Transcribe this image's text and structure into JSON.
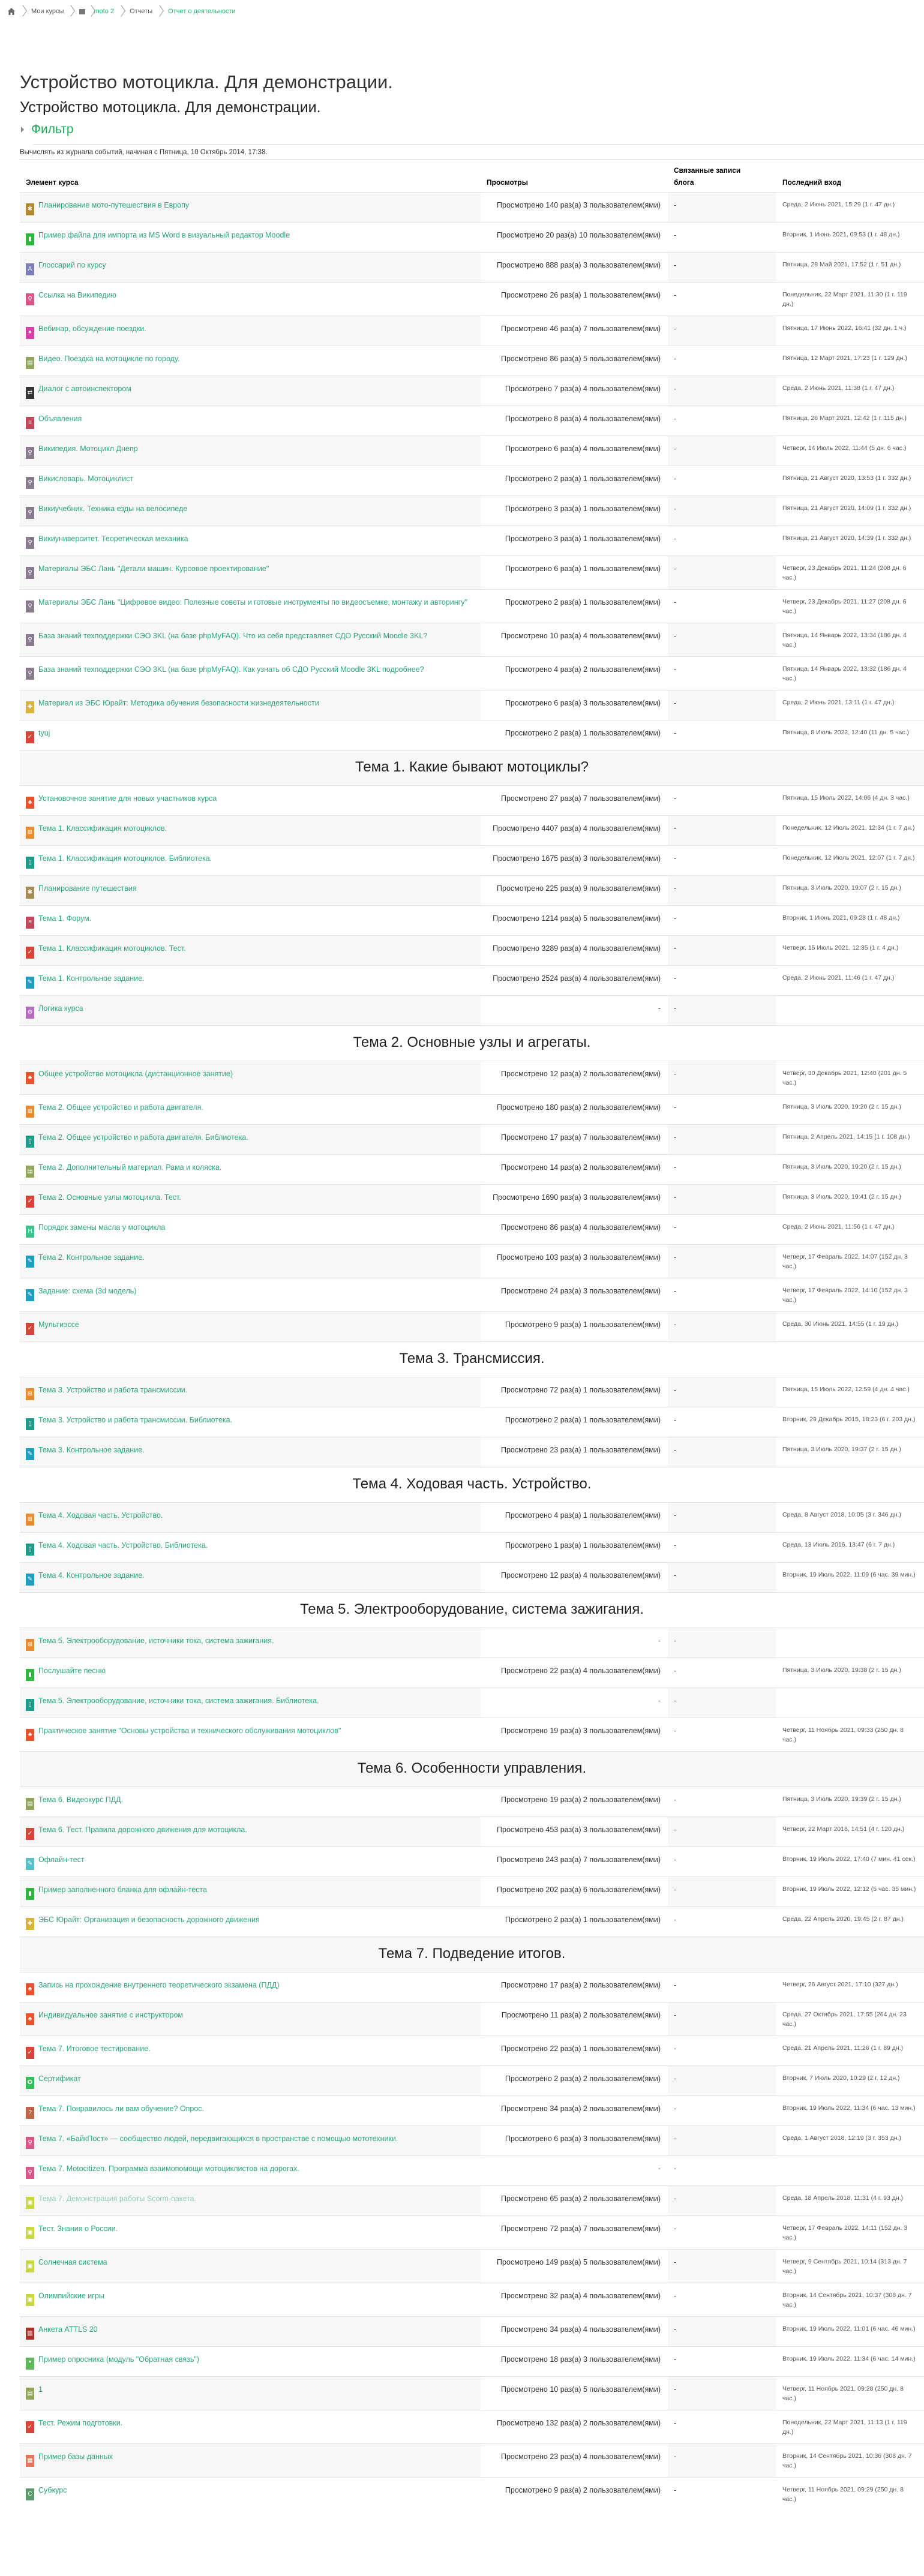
{
  "breadcrumb": {
    "home_icon": "home-icon",
    "items": [
      {
        "label": "Мои курсы",
        "link": false
      },
      {
        "label": "moto 2",
        "link": true,
        "icon": "course-icon"
      },
      {
        "label": "Отчеты",
        "link": false
      },
      {
        "label": "Отчет о деятельности",
        "link": true
      }
    ]
  },
  "page_title": "Устройство мотоцикла. Для демонстрации.",
  "page_subtitle": "Устройство мотоцикла. Для демонстрации.",
  "filter_label": "Фильтр",
  "note": "Вычислять из журнала событий, начиная с Пятница, 10 Октябрь 2014, 17:38.",
  "colors": {
    "link": "#2aa77a",
    "breadcrumb_link": "#1eb36c",
    "stripe": "#f7f7f7"
  },
  "table": {
    "headers": {
      "activity": "Элемент курса",
      "views": "Просмотры",
      "blog": "Связанные записи блога",
      "last": "Последний вход"
    },
    "rows": [
      {
        "name": "Планирование мото-путешествия в Европу",
        "views": "Просмотрено 140 раз(а) 3 пользователем(ями)",
        "blog": "-",
        "last": "Среда, 2 Июнь 2021, 15:29 (1 г. 47 дн.)",
        "icon": "workshop-icon",
        "color": "#b08a2e"
      },
      {
        "name": "Пример файла для импорта из MS Word в визуальный редактор Moodle",
        "views": "Просмотрено 20 раз(а) 10 пользователем(ями)",
        "blog": "-",
        "last": "Вторник, 1 Июнь 2021, 09:53 (1 г. 48 дн.)",
        "icon": "file-icon",
        "color": "#2db83d"
      },
      {
        "name": "Глоссарий по курсу",
        "views": "Просмотрено 888 раз(а) 3 пользователем(ями)",
        "blog": "-",
        "last": "Пятница, 28 Май 2021, 17:52 (1 г. 51 дн.)",
        "icon": "glossary-icon",
        "color": "#7b7fb5"
      },
      {
        "name": "Ссылка на Википедию",
        "views": "Просмотрено 26 раз(а) 1 пользователем(ями)",
        "blog": "-",
        "last": "Понедельник, 22 Март 2021, 11:30 (1 г. 119 дн.)",
        "icon": "url-icon",
        "color": "#d9558a"
      },
      {
        "name": "Вебинар, обсуждение поездки.",
        "views": "Просмотрено 46 раз(а) 7 пользователем(ями)",
        "blog": "-",
        "last": "Пятница, 17 Июнь 2022, 16:41 (32 дн. 1 ч.)",
        "icon": "webinar-icon",
        "color": "#d63fa6"
      },
      {
        "name": "Видео. Поездка на мотоцикле по городу.",
        "views": "Просмотрено 86 раз(а) 5 пользователем(ями)",
        "blog": "-",
        "last": "Пятница, 12 Март 2021, 17:23 (1 г. 129 дн.)",
        "icon": "page-icon",
        "color": "#8fa55a"
      },
      {
        "name": "Диалог с автоинспектором",
        "views": "Просмотрено 7 раз(а) 4 пользователем(ями)",
        "blog": "-",
        "last": "Среда, 2 Июнь 2021, 11:38 (1 г. 47 дн.)",
        "icon": "dialogue-icon",
        "color": "#333333"
      },
      {
        "name": "Объявления",
        "views": "Просмотрено 8 раз(а) 4 пользователем(ями)",
        "blog": "-",
        "last": "Пятница, 26 Март 2021, 12:42 (1 г. 115 дн.)",
        "icon": "forum-icon",
        "color": "#c4465a"
      },
      {
        "name": "Википедия. Мотоцикл Днепр",
        "views": "Просмотрено 6 раз(а) 4 пользователем(ями)",
        "blog": "-",
        "last": "Четверг, 14 Июль 2022, 11:44 (5 дн. 6 час.)",
        "icon": "lti-icon",
        "color": "#8a7a8f"
      },
      {
        "name": "Викисловарь. Мотоциклист",
        "views": "Просмотрено 2 раз(а) 1 пользователем(ями)",
        "blog": "-",
        "last": "Пятница, 21 Август 2020, 13:53 (1 г. 332 дн.)",
        "icon": "lti-icon",
        "color": "#8a7a8f"
      },
      {
        "name": "Викиучебник. Техника езды на велосипеде",
        "views": "Просмотрено 3 раз(а) 1 пользователем(ями)",
        "blog": "-",
        "last": "Пятница, 21 Август 2020, 14:09 (1 г. 332 дн.)",
        "icon": "lti-icon",
        "color": "#8a7a8f"
      },
      {
        "name": "Викиуниверситет. Теоретическая механика",
        "views": "Просмотрено 3 раз(а) 1 пользователем(ями)",
        "blog": "-",
        "last": "Пятница, 21 Август 2020, 14:39 (1 г. 332 дн.)",
        "icon": "lti-icon",
        "color": "#8a7a8f"
      },
      {
        "name": "Материалы ЭБС Лань \"Детали машин. Курсовое проектирование\"",
        "views": "Просмотрено 6 раз(а) 1 пользователем(ями)",
        "blog": "-",
        "last": "Четверг, 23 Декабрь 2021, 11:24 (208 дн. 6 час.)",
        "icon": "lti-icon",
        "color": "#8a7a8f"
      },
      {
        "name": "Материалы ЭБС Лань \"Цифровое видео: Полезные советы и готовые инструменты по видеосъемке, монтажу и авторингу\"",
        "views": "Просмотрено 2 раз(а) 1 пользователем(ями)",
        "blog": "-",
        "last": "Четверг, 23 Декабрь 2021, 11:27 (208 дн. 6 час.)",
        "icon": "lti-icon",
        "color": "#8a7a8f"
      },
      {
        "name": "База знаний техподдержки СЭО 3KL (на базе phpMyFAQ). Что из себя представляет СДО Русский Moodle 3KL?",
        "views": "Просмотрено 10 раз(а) 4 пользователем(ями)",
        "blog": "-",
        "last": "Пятница, 14 Январь 2022, 13:34 (186 дн. 4 час.)",
        "icon": "lti-icon",
        "color": "#8a7a8f"
      },
      {
        "name": "База знаний техподдержки СЭО 3KL (на базе phpMyFAQ). Как узнать об СДО Русский Moodle 3KL подробнее?",
        "views": "Просмотрено 4 раз(а) 2 пользователем(ями)",
        "blog": "-",
        "last": "Пятница, 14 Январь 2022, 13:32 (186 дн. 4 час.)",
        "icon": "lti-icon",
        "color": "#8a7a8f"
      },
      {
        "name": "Материал из ЭБС Юрайт: Методика обучения безопасности жизнедеятельности",
        "views": "Просмотрено 6 раз(а) 3 пользователем(ями)",
        "blog": "-",
        "last": "Среда, 2 Июнь 2021, 13:11 (1 г. 47 дн.)",
        "icon": "puzzle-icon",
        "color": "#d9b33a"
      },
      {
        "name": "tyuj",
        "views": "Просмотрено 2 раз(а) 1 пользователем(ями)",
        "blog": "-",
        "last": "Пятница, 8 Июль 2022, 12:40 (11 дн. 5 час.)",
        "icon": "quiz-icon",
        "color": "#d9443a"
      },
      {
        "section": "Тема 1. Какие бывают мотоциклы?"
      },
      {
        "name": "Установочное занятие для новых участников курса",
        "views": "Просмотрено 27 раз(а) 7 пользователем(ями)",
        "blog": "-",
        "last": "Пятница, 15 Июль 2022, 14:06 (4 дн. 3 час.)",
        "icon": "event-icon",
        "color": "#e8532b"
      },
      {
        "name": "Тема 1. Классификация мотоциклов.",
        "views": "Просмотрено 4407 раз(а) 4 пользователем(ями)",
        "blog": "-",
        "last": "Понедельник, 12 Июль 2021, 12:34 (1 г. 7 дн.)",
        "icon": "lesson-icon",
        "color": "#e98a2e"
      },
      {
        "name": "Тема 1. Классификация мотоциклов. Библиотека.",
        "views": "Просмотрено 1675 раз(а) 3 пользователем(ями)",
        "blog": "-",
        "last": "Понедельник, 12 Июль 2021, 12:07 (1 г. 7 дн.)",
        "icon": "book-icon",
        "color": "#1a9e8a"
      },
      {
        "name": "Планирование путешествия",
        "views": "Просмотрено 225 раз(а) 9 пользователем(ями)",
        "blog": "-",
        "last": "Пятница, 3 Июль 2020, 19:07 (2 г. 15 дн.)",
        "icon": "workshop-icon",
        "color": "#a88a55"
      },
      {
        "name": "Тема 1. Форум.",
        "views": "Просмотрено 1214 раз(а) 5 пользователем(ями)",
        "blog": "-",
        "last": "Вторник, 1 Июнь 2021, 09:28 (1 г. 48 дн.)",
        "icon": "forum-icon",
        "color": "#c4465a"
      },
      {
        "name": "Тема 1. Классификация мотоциклов. Тест.",
        "views": "Просмотрено 3289 раз(а) 4 пользователем(ями)",
        "blog": "-",
        "last": "Четверг, 15 Июль 2021, 12:35 (1 г. 4 дн.)",
        "icon": "quiz-icon",
        "color": "#d9443a"
      },
      {
        "name": "Тема 1. Контрольное задание.",
        "views": "Просмотрено 2524 раз(а) 4 пользователем(ями)",
        "blog": "-",
        "last": "Среда, 2 Июнь 2021, 11:46 (1 г. 47 дн.)",
        "icon": "assign-icon",
        "color": "#1e9fc0"
      },
      {
        "name": "Логика курса",
        "views": "-",
        "blog": "-",
        "last": "",
        "icon": "gear-icon",
        "color": "#b36abf"
      },
      {
        "section": "Тема 2. Основные узлы и агрегаты."
      },
      {
        "name": "Общее устройство мотоцикла (дистанционное занятие)",
        "views": "Просмотрено 12 раз(а) 2 пользователем(ями)",
        "blog": "-",
        "last": "Четверг, 30 Декабрь 2021, 12:40 (201 дн. 5 час.)",
        "icon": "event-icon",
        "color": "#e8532b"
      },
      {
        "name": "Тема 2. Общее устройство и работа двигателя.",
        "views": "Просмотрено 180 раз(а) 2 пользователем(ями)",
        "blog": "-",
        "last": "Пятница, 3 Июль 2020, 19:20 (2 г. 15 дн.)",
        "icon": "lesson-icon",
        "color": "#e98a2e"
      },
      {
        "name": "Тема 2. Общее устройство и работа двигателя. Библиотека.",
        "views": "Просмотрено 17 раз(а) 7 пользователем(ями)",
        "blog": "-",
        "last": "Пятница, 2 Апрель 2021, 14:15 (1 г. 108 дн.)",
        "icon": "book-icon",
        "color": "#1a9e8a"
      },
      {
        "name": "Тема 2. Дополнительный материал. Рама и коляска.",
        "views": "Просмотрено 14 раз(а) 2 пользователем(ями)",
        "blog": "-",
        "last": "Пятница, 3 Июль 2020, 19:20 (2 г. 15 дн.)",
        "icon": "page-icon",
        "color": "#8fa55a"
      },
      {
        "name": "Тема 2. Основные узлы мотоцикла. Тест.",
        "views": "Просмотрено 1690 раз(а) 3 пользователем(ями)",
        "blog": "-",
        "last": "Пятница, 3 Июль 2020, 19:41 (2 г. 15 дн.)",
        "icon": "quiz-icon",
        "color": "#d9443a"
      },
      {
        "name": "Порядок замены масла у мотоцикла",
        "views": "Просмотрено 86 раз(а) 4 пользователем(ями)",
        "blog": "-",
        "last": "Среда, 2 Июнь 2021, 11:56 (1 г. 47 дн.)",
        "icon": "hvp-icon",
        "color": "#3bc48a"
      },
      {
        "name": "Тема 2. Контрольное задание.",
        "views": "Просмотрено 103 раз(а) 3 пользователем(ями)",
        "blog": "-",
        "last": "Четверг, 17 Февраль 2022, 14:07 (152 дн. 3 час.)",
        "icon": "assign-icon",
        "color": "#1e9fc0"
      },
      {
        "name": "Задание: схема (3d модель)",
        "views": "Просмотрено 24 раз(а) 3 пользователем(ями)",
        "blog": "-",
        "last": "Четверг, 17 Февраль 2022, 14:10 (152 дн. 3 час.)",
        "icon": "assign-icon",
        "color": "#1e9fc0"
      },
      {
        "name": "Мультиэссе",
        "views": "Просмотрено 9 раз(а) 1 пользователем(ями)",
        "blog": "-",
        "last": "Среда, 30 Июнь 2021, 14:55 (1 г. 19 дн.)",
        "icon": "quiz-icon",
        "color": "#d9443a"
      },
      {
        "section": "Тема 3. Трансмиссия."
      },
      {
        "name": "Тема 3. Устройство и работа трансмиссии.",
        "views": "Просмотрено 72 раз(а) 1 пользователем(ями)",
        "blog": "-",
        "last": "Пятница, 15 Июль 2022, 12:59 (4 дн. 4 час.)",
        "icon": "lesson-icon",
        "color": "#e98a2e"
      },
      {
        "name": "Тема 3. Устройство и работа трансмиссии. Библиотека.",
        "views": "Просмотрено 2 раз(а) 1 пользователем(ями)",
        "blog": "-",
        "last": "Вторник, 29 Декабрь 2015, 18:23 (6 г. 203 дн.)",
        "icon": "book-icon",
        "color": "#1a9e8a"
      },
      {
        "name": "Тема 3. Контрольное задание.",
        "views": "Просмотрено 23 раз(а) 1 пользователем(ями)",
        "blog": "-",
        "last": "Пятница, 3 Июль 2020, 19:37 (2 г. 15 дн.)",
        "icon": "assign-icon",
        "color": "#1e9fc0"
      },
      {
        "section": "Тема 4. Ходовая часть. Устройство."
      },
      {
        "name": "Тема 4. Ходовая часть. Устройство.",
        "views": "Просмотрено 4 раз(а) 1 пользователем(ями)",
        "blog": "-",
        "last": "Среда, 8 Август 2018, 10:05 (3 г. 346 дн.)",
        "icon": "lesson-icon",
        "color": "#e98a2e"
      },
      {
        "name": "Тема 4. Ходовая часть. Устройство. Библиотека.",
        "views": "Просмотрено 1 раз(а) 1 пользователем(ями)",
        "blog": "-",
        "last": "Среда, 13 Июль 2016, 13:47 (6 г. 7 дн.)",
        "icon": "book-icon",
        "color": "#1a9e8a"
      },
      {
        "name": "Тема 4. Контрольное задание.",
        "views": "Просмотрено 12 раз(а) 4 пользователем(ями)",
        "blog": "-",
        "last": "Вторник, 19 Июль 2022, 11:09 (6 час. 39 мин.)",
        "icon": "assign-icon",
        "color": "#1e9fc0"
      },
      {
        "section": "Тема 5. Электрооборудование, система зажигания."
      },
      {
        "name": "Тема 5. Электрооборудование, источники тока, система зажигания.",
        "views": "-",
        "blog": "-",
        "last": "",
        "icon": "lesson-icon",
        "color": "#e98a2e"
      },
      {
        "name": "Послушайте песню",
        "views": "Просмотрено 22 раз(а) 4 пользователем(ями)",
        "blog": "-",
        "last": "Пятница, 3 Июль 2020, 19:38 (2 г. 15 дн.)",
        "icon": "file-icon",
        "color": "#2db83d"
      },
      {
        "name": "Тема 5. Электрооборудование, источники тока, система зажигания. Библиотека.",
        "views": "-",
        "blog": "-",
        "last": "",
        "icon": "book-icon",
        "color": "#1a9e8a"
      },
      {
        "name": "Практическое занятие \"Основы устройства и технического обслуживания мотоциклов\"",
        "views": "Просмотрено 19 раз(а) 3 пользователем(ями)",
        "blog": "-",
        "last": "Четверг, 11 Ноябрь 2021, 09:33 (250 дн. 8 час.)",
        "icon": "event-icon",
        "color": "#e8532b"
      },
      {
        "section": "Тема 6. Особенности управления."
      },
      {
        "name": "Тема 6. Видеокурс ПДД.",
        "views": "Просмотрено 19 раз(а) 2 пользователем(ями)",
        "blog": "-",
        "last": "Пятница, 3 Июль 2020, 19:39 (2 г. 15 дн.)",
        "icon": "page-icon",
        "color": "#8fa55a"
      },
      {
        "name": "Тема 6. Тест. Правила дорожного движения для мотоцикла.",
        "views": "Просмотрено 453 раз(а) 3 пользователем(ями)",
        "blog": "-",
        "last": "Четверг, 22 Март 2018, 14:51 (4 г. 120 дн.)",
        "icon": "quiz-icon",
        "color": "#d9443a"
      },
      {
        "name": "Офлайн-тест",
        "views": "Просмотрено 243 раз(а) 7 пользователем(ями)",
        "blog": "-",
        "last": "Вторник, 19 Июль 2022, 17:40 (7 мин. 41 сек.)",
        "icon": "offline-quiz-icon",
        "color": "#5bbfc9"
      },
      {
        "name": "Пример заполненного бланка для офлайн-теста",
        "views": "Просмотрено 202 раз(а) 6 пользователем(ями)",
        "blog": "-",
        "last": "Вторник, 19 Июль 2022, 12:12 (5 час. 35 мин.)",
        "icon": "file-icon",
        "color": "#2db83d"
      },
      {
        "name": "ЭБС Юрайт: Организация и безопасность дорожного движения",
        "views": "Просмотрено 2 раз(а) 1 пользователем(ями)",
        "blog": "-",
        "last": "Среда, 22 Апрель 2020, 19:45 (2 г. 87 дн.)",
        "icon": "puzzle-icon",
        "color": "#d9b33a"
      },
      {
        "section": "Тема 7. Подведение итогов."
      },
      {
        "name": "Запись на прохождение внутреннего теоретического экзамена (ПДД)",
        "views": "Просмотрено 17 раз(а) 2 пользователем(ями)",
        "blog": "-",
        "last": "Четверг, 26 Август 2021, 17:10 (327 дн.)",
        "icon": "event-icon",
        "color": "#e8532b"
      },
      {
        "name": "Индивидуальное занятие с инструктором",
        "views": "Просмотрено 11 раз(а) 2 пользователем(ями)",
        "blog": "-",
        "last": "Среда, 27 Октябрь 2021, 17:55 (264 дн. 23 час.)",
        "icon": "event-icon",
        "color": "#e8532b"
      },
      {
        "name": "Тема 7. Итоговое тестирование.",
        "views": "Просмотрено 22 раз(а) 1 пользователем(ями)",
        "blog": "-",
        "last": "Среда, 21 Апрель 2021, 11:26 (1 г. 89 дн.)",
        "icon": "quiz-icon",
        "color": "#d9443a"
      },
      {
        "name": "Сертификат",
        "views": "Просмотрено 2 раз(а) 2 пользователем(ями)",
        "blog": "-",
        "last": "Вторник, 7 Июль 2020, 10:29 (2 г. 12 дн.)",
        "icon": "certificate-icon",
        "color": "#2fc05a"
      },
      {
        "name": "Тема 7. Понравилось ли вам обучение? Опрос.",
        "views": "Просмотрено 34 раз(а) 2 пользователем(ями)",
        "blog": "-",
        "last": "Вторник, 19 Июль 2022, 11:34 (6 час. 13 мин.)",
        "icon": "choice-icon",
        "color": "#c0654a"
      },
      {
        "name": "Тема 7. «БайкПост» — сообщество людей, передвигающихся в пространстве с помощью мототехники.",
        "views": "Просмотрено 6 раз(а) 3 пользователем(ями)",
        "blog": "-",
        "last": "Среда, 1 Август 2018, 12:19 (3 г. 353 дн.)",
        "icon": "url-icon",
        "color": "#d9558a"
      },
      {
        "name": "Тема 7. Motocitizen. Программа взаимопомощи мотоциклистов на дорогах.",
        "views": "-",
        "blog": "-",
        "last": "",
        "icon": "url-icon",
        "color": "#d9558a"
      },
      {
        "name": "Тема 7. Демонстрация работы Scorm-пакета.",
        "views": "Просмотрено 65 раз(а) 2 пользователем(ями)",
        "blog": "-",
        "last": "Среда, 18 Апрель 2018, 11:31 (4 г. 93 дн.)",
        "icon": "scorm-icon",
        "color": "#c9d83a",
        "dimmed": true
      },
      {
        "name": "Тест. Знания о России.",
        "views": "Просмотрено 72 раз(а) 7 пользователем(ями)",
        "blog": "-",
        "last": "Четверг, 17 Февраль 2022, 14:11 (152 дн. 3 час.)",
        "icon": "scorm-icon",
        "color": "#c9d83a"
      },
      {
        "name": "Солнечная система",
        "views": "Просмотрено 149 раз(а) 5 пользователем(ями)",
        "blog": "-",
        "last": "Четверг, 9 Сентябрь 2021, 10:14 (313 дн. 7 час.)",
        "icon": "scorm-icon",
        "color": "#c9d83a"
      },
      {
        "name": "Олимпийские игры",
        "views": "Просмотрено 32 раз(а) 4 пользователем(ями)",
        "blog": "-",
        "last": "Вторник, 14 Сентябрь 2021, 10:37 (308 дн. 7 час.)",
        "icon": "scorm-icon",
        "color": "#c9d83a"
      },
      {
        "name": "Анкета ATTLS 20",
        "views": "Просмотрено 34 раз(а) 4 пользователем(ями)",
        "blog": "-",
        "last": "Вторник, 19 Июль 2022, 11:01 (6 час. 46 мин.)",
        "icon": "survey-icon",
        "color": "#b0302a"
      },
      {
        "name": "Пример опросника (модуль \"Обратная связь\")",
        "views": "Просмотрено 18 раз(а) 3 пользователем(ями)",
        "blog": "-",
        "last": "Вторник, 19 Июль 2022, 11:34 (6 час. 14 мин.)",
        "icon": "feedback-icon",
        "color": "#5fb85a"
      },
      {
        "name": "1",
        "views": "Просмотрено 10 раз(а) 5 пользователем(ями)",
        "blog": "-",
        "last": "Четверг, 11 Ноябрь 2021, 09:28 (250 дн. 8 час.)",
        "icon": "page-icon",
        "color": "#8fa55a"
      },
      {
        "name": "Тест. Режим подготовки.",
        "views": "Просмотрено 132 раз(а) 2 пользователем(ями)",
        "blog": "-",
        "last": "Понедельник, 22 Март 2021, 11:13 (1 г. 119 дн.)",
        "icon": "quiz-icon",
        "color": "#d9443a"
      },
      {
        "name": "Пример базы данных",
        "views": "Просмотрено 23 раз(а) 4 пользователем(ями)",
        "blog": "-",
        "last": "Вторник, 14 Сентябрь 2021, 10:36 (308 дн. 7 час.)",
        "icon": "database-icon",
        "color": "#e8735a"
      },
      {
        "name": "Субкурс",
        "views": "Просмотрено 9 раз(а) 2 пользователем(ями)",
        "blog": "-",
        "last": "Четверг, 11 Ноябрь 2021, 09:29 (250 дн. 8 час.)",
        "icon": "subcourse-icon",
        "color": "#5a9a6a"
      }
    ]
  }
}
